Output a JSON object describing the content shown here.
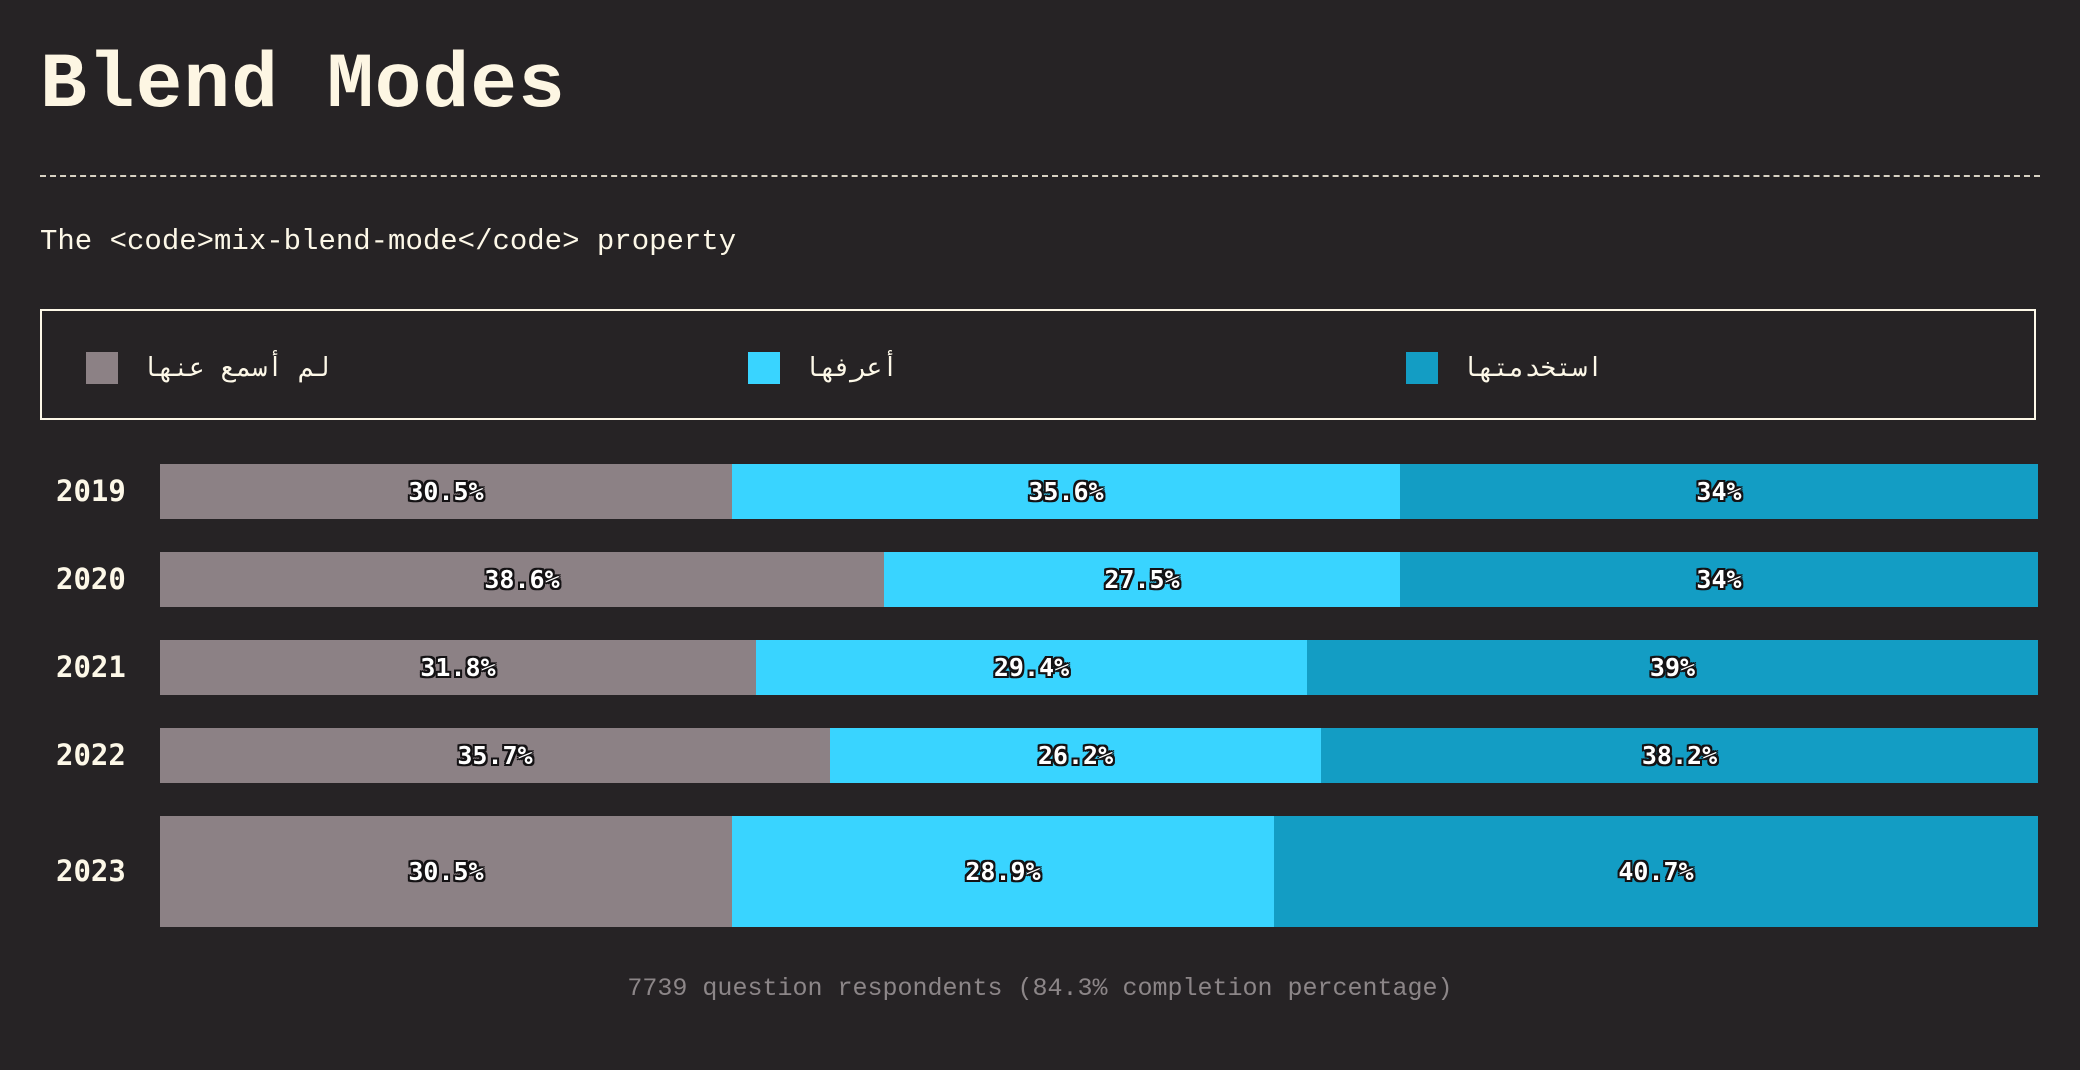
{
  "header": {
    "title": "Blend Modes",
    "subtitle": "The <code>mix-blend-mode</code> property"
  },
  "chart_data": {
    "type": "bar",
    "orientation": "horizontal",
    "stacked": true,
    "normalized": true,
    "categories": [
      "2019",
      "2020",
      "2021",
      "2022",
      "2023"
    ],
    "series": [
      {
        "name": "لم أسمع عنها",
        "color": "#8c8185",
        "values": [
          30.5,
          38.6,
          31.8,
          35.7,
          30.5
        ],
        "labels": [
          "30.5%",
          "38.6%",
          "31.8%",
          "35.7%",
          "30.5%"
        ]
      },
      {
        "name": "أعرفها",
        "color": "#39d4ff",
        "values": [
          35.6,
          27.5,
          29.4,
          26.2,
          28.9
        ],
        "labels": [
          "35.6%",
          "27.5%",
          "29.4%",
          "26.2%",
          "28.9%"
        ]
      },
      {
        "name": "استخدمتها",
        "color": "#139dc4",
        "values": [
          34,
          34,
          39,
          38.2,
          40.7
        ],
        "labels": [
          "34%",
          "34%",
          "39%",
          "38.2%",
          "40.7%"
        ]
      }
    ],
    "legend_position": "top",
    "grid": false
  },
  "footer": {
    "note": "7739 question respondents (84.3% completion percentage)"
  }
}
